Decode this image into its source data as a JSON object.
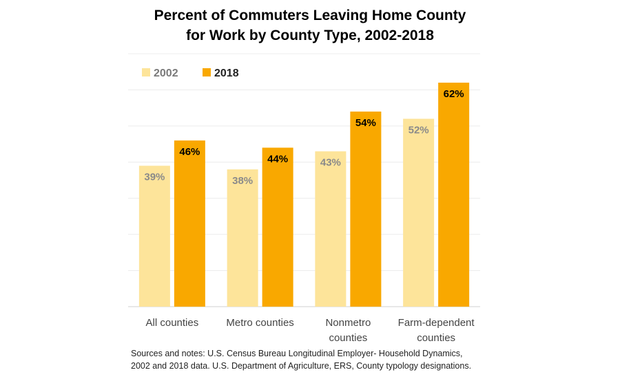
{
  "chart_data": {
    "type": "bar",
    "title_lines": [
      "Percent of Commuters Leaving Home County",
      "for Work by County Type, 2002-2018"
    ],
    "categories": [
      [
        "All counties"
      ],
      [
        "Metro counties"
      ],
      [
        "Nonmetro",
        "counties"
      ],
      [
        "Farm-dependent",
        "counties"
      ]
    ],
    "series": [
      {
        "name": "2002",
        "values": [
          39,
          38,
          43,
          52
        ],
        "labels": [
          "39%",
          "38%",
          "43%",
          "52%"
        ],
        "color": "#fde49a",
        "label_color": "#8a8a8a"
      },
      {
        "name": "2018",
        "values": [
          46,
          44,
          54,
          62
        ],
        "labels": [
          "46%",
          "44%",
          "54%",
          "62%"
        ],
        "color": "#f9a800",
        "label_color": "#000000"
      }
    ],
    "ylim": [
      0,
      70
    ],
    "grid": true,
    "legend_position": "top-left",
    "notes_lines": [
      "Sources and notes: U.S. Census Bureau Longitudinal Employer- Household Dynamics,",
      "2002 and 2018 data. U.S. Department of Agriculture, ERS, County typology designations."
    ]
  }
}
